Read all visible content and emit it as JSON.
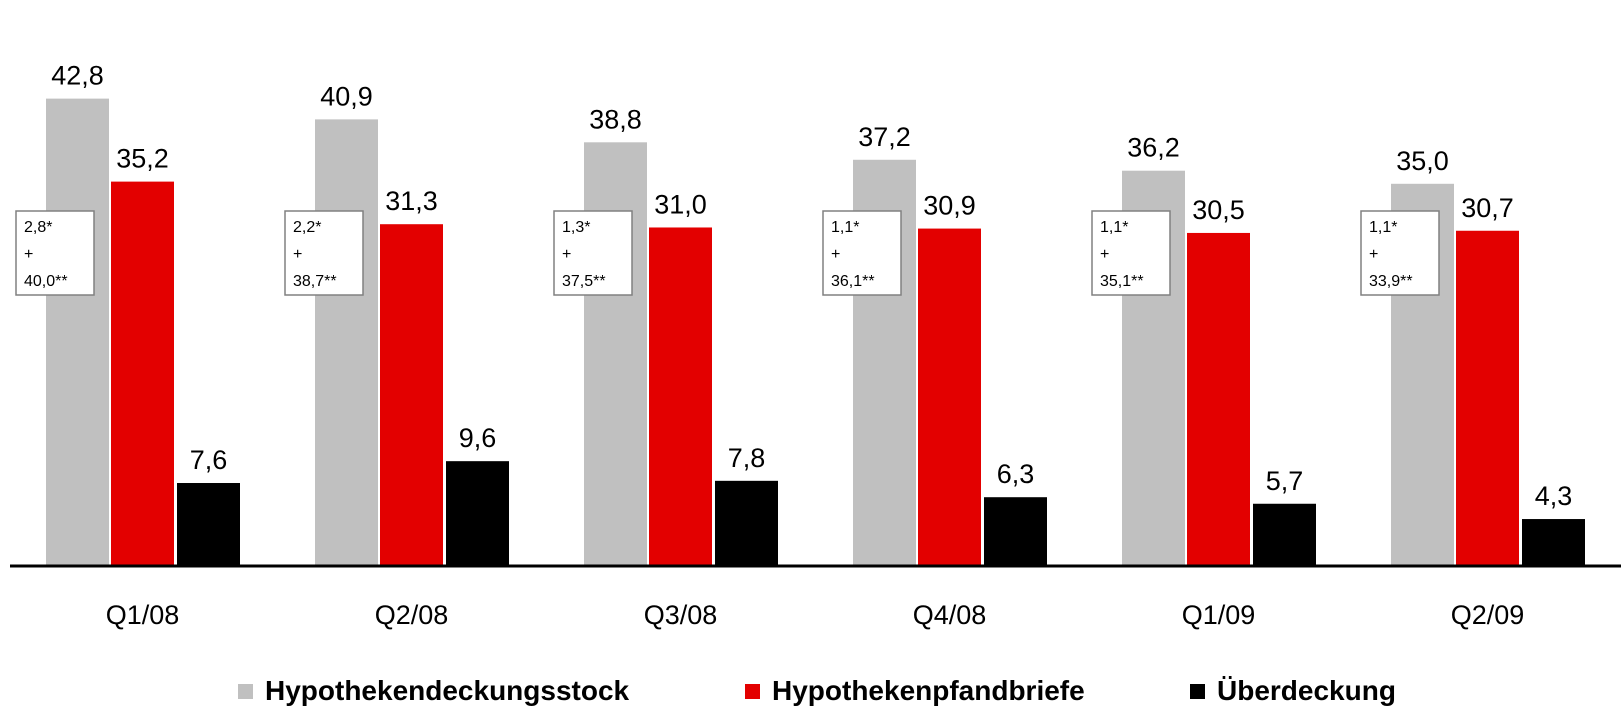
{
  "chart_data": {
    "type": "bar",
    "categories": [
      "Q1/08",
      "Q2/08",
      "Q3/08",
      "Q4/08",
      "Q1/09",
      "Q2/09"
    ],
    "series": [
      {
        "name": "Hypothekendeckungsstock",
        "color": "#c0c0c0",
        "values": [
          42.8,
          40.9,
          38.8,
          37.2,
          36.2,
          35.0
        ],
        "labels": [
          "42,8",
          "40,9",
          "38,8",
          "37,2",
          "36,2",
          "35,0"
        ]
      },
      {
        "name": "Hypothekenpfandbriefe",
        "color": "#e30000",
        "values": [
          35.2,
          31.3,
          31.0,
          30.9,
          30.5,
          30.7
        ],
        "labels": [
          "35,2",
          "31,3",
          "31,0",
          "30,9",
          "30,5",
          "30,7"
        ]
      },
      {
        "name": "Überdeckung",
        "color": "#000000",
        "values": [
          7.6,
          9.6,
          7.8,
          6.3,
          5.7,
          4.3
        ],
        "labels": [
          "7,6",
          "9,6",
          "7,8",
          "6,3",
          "5,7",
          "4,3"
        ]
      }
    ],
    "annotations": [
      {
        "line1": "2,8*",
        "line2": "+",
        "line3": "40,0**"
      },
      {
        "line1": "2,2*",
        "line2": "+",
        "line3": "38,7**"
      },
      {
        "line1": "1,3*",
        "line2": "+",
        "line3": "37,5**"
      },
      {
        "line1": "1,1*",
        "line2": "+",
        "line3": "36,1**"
      },
      {
        "line1": "1,1*",
        "line2": "+",
        "line3": "35,1**"
      },
      {
        "line1": "1,1*",
        "line2": "+",
        "line3": "33,9**"
      }
    ],
    "ylim": [
      0,
      50
    ],
    "grid": false,
    "legend_position": "bottom"
  }
}
